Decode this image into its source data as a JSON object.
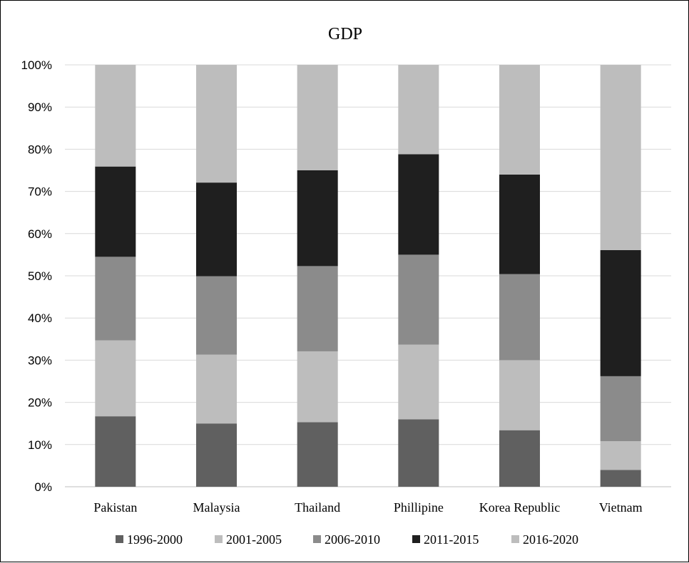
{
  "chart_data": {
    "type": "bar",
    "stacked": true,
    "title": "GDP",
    "xlabel": "",
    "ylabel": "",
    "ylim": [
      0,
      100
    ],
    "yticks": [
      "0%",
      "10%",
      "20%",
      "30%",
      "40%",
      "50%",
      "60%",
      "70%",
      "80%",
      "90%",
      "100%"
    ],
    "grid": true,
    "legend_position": "bottom",
    "categories": [
      "Pakistan",
      "Malaysia",
      "Thailand",
      "Phillipine",
      "Korea Republic",
      "Vietnam"
    ],
    "series": [
      {
        "name": "1996-2000",
        "color": "#606060",
        "values": [
          16.7,
          15.0,
          15.3,
          16.0,
          13.4,
          4.0
        ]
      },
      {
        "name": "2001-2005",
        "color": "#bdbdbd",
        "values": [
          18.0,
          16.3,
          16.8,
          17.7,
          16.6,
          6.8
        ]
      },
      {
        "name": "2006-2010",
        "color": "#8b8b8b",
        "values": [
          19.8,
          18.6,
          20.2,
          21.3,
          20.4,
          15.4
        ]
      },
      {
        "name": "2011-2015",
        "color": "#1f1f1f",
        "values": [
          21.4,
          22.2,
          22.7,
          23.8,
          23.6,
          29.9
        ]
      },
      {
        "name": "2016-2020",
        "color": "#bdbdbd",
        "values": [
          24.1,
          27.9,
          25.0,
          21.2,
          26.0,
          43.9
        ]
      }
    ]
  }
}
